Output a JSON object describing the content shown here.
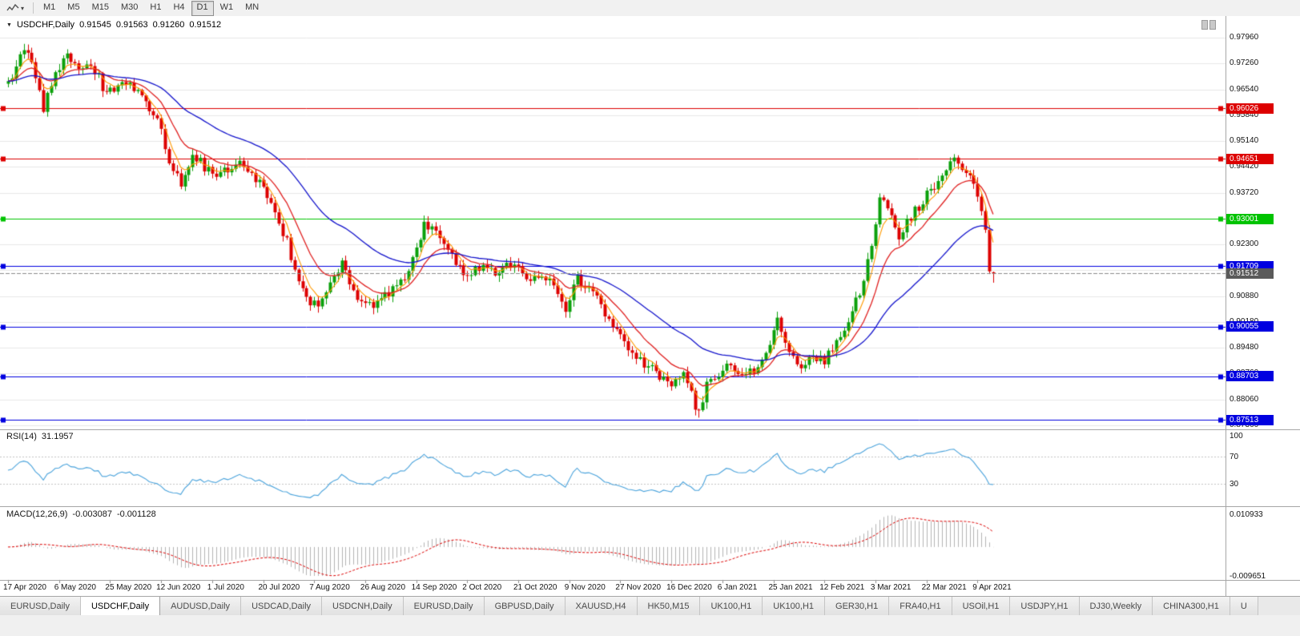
{
  "toolbar": {
    "timeframes": [
      "M1",
      "M5",
      "M15",
      "M30",
      "H1",
      "H4",
      "D1",
      "W1",
      "MN"
    ],
    "active_timeframe": "D1"
  },
  "chart": {
    "title": "USDCHF,Daily",
    "ohlc": {
      "open": "0.91545",
      "high": "0.91563",
      "low": "0.91260",
      "close": "0.91512"
    }
  },
  "rsi_panel": {
    "label": "RSI(14)",
    "value": "31.1957",
    "axis_labels": [
      100,
      70,
      30
    ],
    "level_lines": [
      70,
      30
    ]
  },
  "macd_panel": {
    "label": "MACD(12,26,9)",
    "value_macd": "-0.003087",
    "value_signal": "-0.001128",
    "axis_top": "0.010933",
    "axis_bottom": "-0.009651"
  },
  "price_axis": {
    "current_price": "0.91512",
    "current_badge_color": "#5a5a5a"
  },
  "colors": {
    "up": "#0aa00a",
    "down": "#dd0000",
    "ma_fast": "#ff9a00",
    "ma_mid": "#e02020",
    "ma_slow": "#1414cc",
    "rsi": "#4aa3dc",
    "macd_hist": "#b4b4b4",
    "macd_signal": "#dd0000",
    "grid": "#e7e7e7",
    "current_line": "#8c8c8c"
  },
  "tabs": {
    "items": [
      "EURUSD,Daily",
      "USDCHF,Daily",
      "AUDUSD,Daily",
      "USDCAD,Daily",
      "USDCNH,Daily",
      "EURUSD,Daily",
      "GBPUSD,Daily",
      "XAUUSD,H4",
      "HK50,M15",
      "UK100,H1",
      "UK100,H1",
      "GER30,H1",
      "FRA40,H1",
      "USOil,H1",
      "USDJPY,H1",
      "DJ30,Weekly",
      "CHINA300,H1",
      "U"
    ],
    "active_index": 1
  },
  "chart_data": {
    "type": "candlestick",
    "symbol": "USDCHF",
    "timeframe": "Daily",
    "bars": 252,
    "y_axis_ticks": [
      0.9796,
      0.9726,
      0.9654,
      0.9584,
      0.9514,
      0.9442,
      0.9372,
      0.9302,
      0.923,
      0.916,
      0.9088,
      0.9018,
      0.8948,
      0.8876,
      0.8806,
      0.8736
    ],
    "x_axis_ticks": [
      "17 Apr 2020",
      "6 May 2020",
      "25 May 2020",
      "12 Jun 2020",
      "1 Jul 2020",
      "20 Jul 2020",
      "7 Aug 2020",
      "26 Aug 2020",
      "14 Sep 2020",
      "2 Oct 2020",
      "21 Oct 2020",
      "9 Nov 2020",
      "27 Nov 2020",
      "16 Dec 2020",
      "6 Jan 2021",
      "25 Jan 2021",
      "12 Feb 2021",
      "3 Mar 2021",
      "22 Mar 2021",
      "9 Apr 2021"
    ],
    "x_tick_bar_indices": [
      0,
      13,
      26,
      39,
      52,
      65,
      78,
      91,
      104,
      117,
      130,
      143,
      156,
      169,
      182,
      195,
      208,
      221,
      234,
      247
    ],
    "last_bar": {
      "open": 0.91545,
      "high": 0.91563,
      "low": 0.9126,
      "close": 0.91512
    },
    "price_path_anchors": [
      [
        0,
        0.967
      ],
      [
        2,
        0.9718
      ],
      [
        4,
        0.9758
      ],
      [
        6,
        0.9722
      ],
      [
        9,
        0.9602
      ],
      [
        12,
        0.9688
      ],
      [
        15,
        0.9744
      ],
      [
        18,
        0.9706
      ],
      [
        21,
        0.9724
      ],
      [
        24,
        0.9664
      ],
      [
        27,
        0.9644
      ],
      [
        30,
        0.9676
      ],
      [
        33,
        0.9648
      ],
      [
        36,
        0.9598
      ],
      [
        39,
        0.9542
      ],
      [
        41,
        0.9464
      ],
      [
        44,
        0.9398
      ],
      [
        47,
        0.9478
      ],
      [
        50,
        0.9444
      ],
      [
        53,
        0.9402
      ],
      [
        56,
        0.944
      ],
      [
        59,
        0.9458
      ],
      [
        62,
        0.9424
      ],
      [
        65,
        0.9386
      ],
      [
        68,
        0.9304
      ],
      [
        71,
        0.9238
      ],
      [
        74,
        0.9128
      ],
      [
        77,
        0.907
      ],
      [
        79,
        0.9056
      ],
      [
        82,
        0.9124
      ],
      [
        85,
        0.9176
      ],
      [
        88,
        0.9104
      ],
      [
        91,
        0.9066
      ],
      [
        94,
        0.9072
      ],
      [
        97,
        0.91
      ],
      [
        100,
        0.9126
      ],
      [
        103,
        0.9194
      ],
      [
        106,
        0.9286
      ],
      [
        109,
        0.9266
      ],
      [
        112,
        0.9204
      ],
      [
        115,
        0.9166
      ],
      [
        118,
        0.915
      ],
      [
        121,
        0.9176
      ],
      [
        124,
        0.9146
      ],
      [
        127,
        0.9166
      ],
      [
        130,
        0.9186
      ],
      [
        133,
        0.912
      ],
      [
        136,
        0.9156
      ],
      [
        139,
        0.913
      ],
      [
        142,
        0.9056
      ],
      [
        145,
        0.9136
      ],
      [
        148,
        0.911
      ],
      [
        151,
        0.906
      ],
      [
        154,
        0.9014
      ],
      [
        157,
        0.8966
      ],
      [
        160,
        0.892
      ],
      [
        163,
        0.8896
      ],
      [
        166,
        0.8866
      ],
      [
        169,
        0.885
      ],
      [
        172,
        0.8876
      ],
      [
        174,
        0.8816
      ],
      [
        176,
        0.877
      ],
      [
        178,
        0.8846
      ],
      [
        181,
        0.888
      ],
      [
        184,
        0.89
      ],
      [
        187,
        0.887
      ],
      [
        190,
        0.889
      ],
      [
        193,
        0.8946
      ],
      [
        196,
        0.9016
      ],
      [
        199,
        0.895
      ],
      [
        202,
        0.89
      ],
      [
        205,
        0.8926
      ],
      [
        208,
        0.891
      ],
      [
        211,
        0.896
      ],
      [
        214,
        0.9026
      ],
      [
        217,
        0.9096
      ],
      [
        220,
        0.9222
      ],
      [
        222,
        0.936
      ],
      [
        224,
        0.9334
      ],
      [
        227,
        0.925
      ],
      [
        230,
        0.9306
      ],
      [
        233,
        0.935
      ],
      [
        236,
        0.939
      ],
      [
        239,
        0.9436
      ],
      [
        242,
        0.9466
      ],
      [
        244,
        0.943
      ],
      [
        246,
        0.939
      ],
      [
        248,
        0.9316
      ],
      [
        249,
        0.9256
      ],
      [
        250,
        0.917
      ],
      [
        251,
        0.91512
      ]
    ],
    "wick_extremes": [
      {
        "bar": 4,
        "type": "high",
        "price": 0.9779
      },
      {
        "bar": 176,
        "type": "low",
        "price": 0.8757
      },
      {
        "bar": 242,
        "type": "high",
        "price": 0.9474
      }
    ],
    "horizontal_levels": [
      {
        "price": 0.96026,
        "label": "0.96026",
        "color": "#dd0000"
      },
      {
        "price": 0.94651,
        "label": "0.94651",
        "color": "#dd0000"
      },
      {
        "price": 0.93001,
        "label": "0.93001",
        "color": "#00c300"
      },
      {
        "price": 0.91709,
        "label": "0.91709",
        "color": "#0000e0"
      },
      {
        "price": 0.90055,
        "label": "0.90055",
        "color": "#0000e0"
      },
      {
        "price": 0.88703,
        "label": "0.88703",
        "color": "#0000e0"
      },
      {
        "price": 0.87513,
        "label": "0.87513",
        "color": "#0000e0"
      }
    ],
    "moving_averages": [
      {
        "name": "fast",
        "period": 5,
        "color_key": "ma_fast",
        "width": 1.1
      },
      {
        "name": "medium",
        "period": 13,
        "color_key": "ma_mid",
        "width": 1.3
      },
      {
        "name": "slow",
        "period": 40,
        "color_key": "ma_slow",
        "width": 1.3
      }
    ],
    "indicators": {
      "rsi": {
        "period": 14,
        "current": 31.1957,
        "levels": [
          70,
          30
        ],
        "range": [
          0,
          100
        ]
      },
      "macd": {
        "fast": 12,
        "slow": 26,
        "signal": 9,
        "current": -0.003087,
        "current_signal": -0.001128,
        "scale_max": 0.010933,
        "scale_min": -0.009651
      }
    }
  }
}
